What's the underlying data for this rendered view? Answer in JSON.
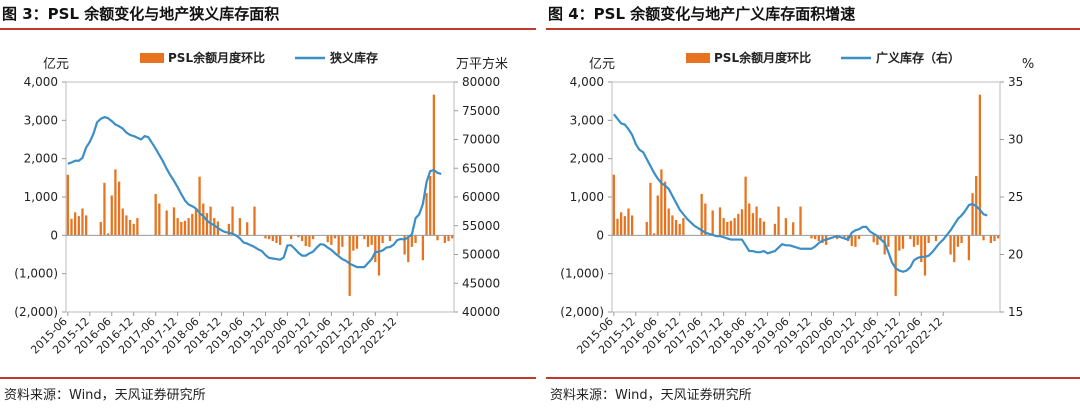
{
  "panels": [
    {
      "title": "图 3：PSL 余额变化与地产狭义库存面积",
      "source": "资料来源：Wind，天风证券研究所",
      "chart_data": {
        "type": "bar+line",
        "left_unit": "亿元",
        "right_unit": "万平方米",
        "legend": {
          "bar": "PSL余额月度环比",
          "line": "狭义库存"
        },
        "colors": {
          "bar": "#e8731e",
          "line": "#3c8fc6"
        },
        "y_left": {
          "min": -2000,
          "max": 4000,
          "ticks": [
            4000,
            3000,
            2000,
            1000,
            0,
            -1000,
            -2000
          ],
          "tick_labels": [
            "4,000",
            "3,000",
            "2,000",
            "1,000",
            "0",
            "(1,000)",
            "(2,000)"
          ]
        },
        "y_right": {
          "min": 40000,
          "max": 80000,
          "ticks": [
            80000,
            75000,
            70000,
            65000,
            60000,
            55000,
            50000,
            45000,
            40000
          ],
          "tick_labels": [
            "80000",
            "75000",
            "70000",
            "65000",
            "60000",
            "55000",
            "50000",
            "45000",
            "40000"
          ]
        },
        "x_tick_labels": [
          "2015-06",
          "2015-12",
          "2016-06",
          "2016-12",
          "2017-06",
          "2017-12",
          "2018-06",
          "2018-12",
          "2019-06",
          "2019-12",
          "2020-06",
          "2020-12",
          "2021-06",
          "2021-12",
          "2022-06",
          "2022-12"
        ],
        "start_month": "2015-06",
        "bars": [
          1580,
          430,
          600,
          500,
          700,
          520,
          0,
          0,
          0,
          350,
          1370,
          50,
          1040,
          1720,
          1400,
          700,
          520,
          400,
          300,
          450,
          0,
          0,
          0,
          0,
          1080,
          830,
          0,
          650,
          0,
          730,
          450,
          350,
          380,
          450,
          560,
          680,
          1530,
          830,
          580,
          750,
          450,
          360,
          0,
          0,
          300,
          750,
          0,
          450,
          0,
          340,
          0,
          750,
          0,
          0,
          -80,
          -100,
          -150,
          -200,
          -250,
          0,
          0,
          -100,
          0,
          -50,
          -150,
          -280,
          -300,
          -100,
          0,
          0,
          0,
          -180,
          -250,
          -80,
          -500,
          -300,
          0,
          -1580,
          -400,
          -350,
          0,
          -100,
          -300,
          -250,
          -700,
          -1050,
          -200,
          0,
          -150,
          0,
          0,
          0,
          -500,
          -700,
          -300,
          -200,
          0,
          -650,
          1100,
          1550,
          3670,
          -130,
          0,
          -200,
          -150,
          -80
        ],
        "line": [
          65800,
          66000,
          66300,
          66300,
          66800,
          68600,
          69600,
          71000,
          73000,
          73600,
          73900,
          73700,
          73200,
          72600,
          72300,
          71900,
          71200,
          70800,
          70600,
          70300,
          70000,
          70600,
          70400,
          69400,
          68400,
          67300,
          66200,
          64900,
          63800,
          62800,
          61700,
          60500,
          59400,
          58700,
          58400,
          58000,
          57200,
          56700,
          55900,
          55400,
          55100,
          54600,
          54200,
          53900,
          53800,
          53600,
          53300,
          52800,
          52100,
          51900,
          51600,
          51300,
          50900,
          50600,
          49900,
          49400,
          49300,
          49200,
          49100,
          49500,
          51600,
          51600,
          51000,
          50300,
          49800,
          49800,
          50200,
          50500,
          51200,
          51800,
          51700,
          51200,
          50800,
          50200,
          49700,
          49200,
          48900,
          48400,
          48100,
          47800,
          47800,
          47800,
          48500,
          49200,
          50400,
          50500,
          50700,
          51200,
          51300,
          51700,
          52500,
          52700,
          52600,
          53000,
          53500,
          56300,
          57000,
          58800,
          62600,
          64500,
          64700,
          64200,
          64000
        ]
      }
    },
    {
      "title": "图 4：PSL 余额变化与地产广义库存面积增速",
      "source": "资料来源：Wind，天风证券研究所",
      "chart_data": {
        "type": "bar+line",
        "left_unit": "亿元",
        "right_unit": "%",
        "legend": {
          "bar": "PSL余额月度环比",
          "line": "广义库存（右）"
        },
        "colors": {
          "bar": "#e8731e",
          "line": "#3c8fc6"
        },
        "y_left": {
          "min": -2000,
          "max": 4000,
          "ticks": [
            4000,
            3000,
            2000,
            1000,
            0,
            -1000,
            -2000
          ],
          "tick_labels": [
            "4,000",
            "3,000",
            "2,000",
            "1,000",
            "0",
            "(1,000)",
            "(2,000)"
          ]
        },
        "y_right": {
          "min": 15,
          "max": 35,
          "ticks": [
            35,
            30,
            25,
            20,
            15
          ],
          "tick_labels": [
            "35",
            "30",
            "25",
            "20",
            "15"
          ]
        },
        "x_tick_labels": [
          "2015-06",
          "2015-12",
          "2016-06",
          "2016-12",
          "2017-06",
          "2017-12",
          "2018-06",
          "2018-12",
          "2019-06",
          "2019-12",
          "2020-06",
          "2020-12",
          "2021-06",
          "2021-12",
          "2022-06",
          "2022-12"
        ],
        "start_month": "2015-06",
        "bars": [
          1580,
          430,
          600,
          500,
          700,
          520,
          0,
          0,
          0,
          350,
          1370,
          50,
          1040,
          1720,
          1400,
          700,
          520,
          400,
          300,
          450,
          0,
          0,
          0,
          0,
          1080,
          830,
          0,
          650,
          0,
          730,
          450,
          350,
          380,
          450,
          560,
          680,
          1530,
          830,
          580,
          750,
          450,
          360,
          0,
          0,
          300,
          750,
          0,
          450,
          0,
          340,
          0,
          750,
          0,
          0,
          -80,
          -100,
          -150,
          -200,
          -250,
          0,
          0,
          -100,
          0,
          -50,
          -150,
          -280,
          -300,
          -100,
          0,
          0,
          0,
          -180,
          -250,
          -80,
          -500,
          -300,
          0,
          -1580,
          -400,
          -350,
          0,
          -100,
          -300,
          -250,
          -700,
          -1050,
          -200,
          0,
          -150,
          0,
          0,
          0,
          -500,
          -700,
          -300,
          -200,
          0,
          -650,
          1100,
          1550,
          3670,
          -130,
          0,
          -200,
          -150,
          -80
        ],
        "line": [
          32.2,
          31.8,
          31.4,
          31.3,
          30.9,
          30.4,
          29.6,
          29.1,
          28.9,
          28.3,
          27.7,
          27.1,
          26.6,
          26.2,
          26.0,
          25.7,
          25.1,
          24.5,
          23.9,
          23.5,
          23.1,
          22.8,
          22.5,
          22.3,
          22.1,
          21.9,
          21.8,
          21.7,
          21.6,
          21.6,
          21.5,
          21.4,
          21.3,
          21.3,
          21.3,
          21.3,
          20.8,
          20.3,
          20.3,
          20.2,
          20.2,
          20.3,
          20.1,
          20.2,
          20.3,
          20.6,
          20.9,
          20.8,
          20.8,
          20.7,
          20.6,
          20.5,
          20.5,
          20.5,
          20.5,
          20.7,
          21.0,
          21.2,
          21.3,
          21.4,
          21.5,
          21.6,
          21.5,
          21.4,
          21.3,
          21.9,
          22.1,
          22.2,
          22.4,
          22.4,
          22.0,
          21.8,
          21.6,
          21.3,
          21.0,
          20.2,
          19.3,
          18.8,
          18.6,
          18.5,
          18.6,
          18.9,
          19.5,
          19.7,
          19.8,
          19.8,
          19.9,
          20.2,
          20.6,
          21.0,
          21.3,
          21.7,
          22.1,
          22.6,
          23.1,
          23.4,
          23.8,
          24.3,
          24.4,
          24.2,
          23.9,
          23.5,
          23.4
        ]
      }
    }
  ]
}
